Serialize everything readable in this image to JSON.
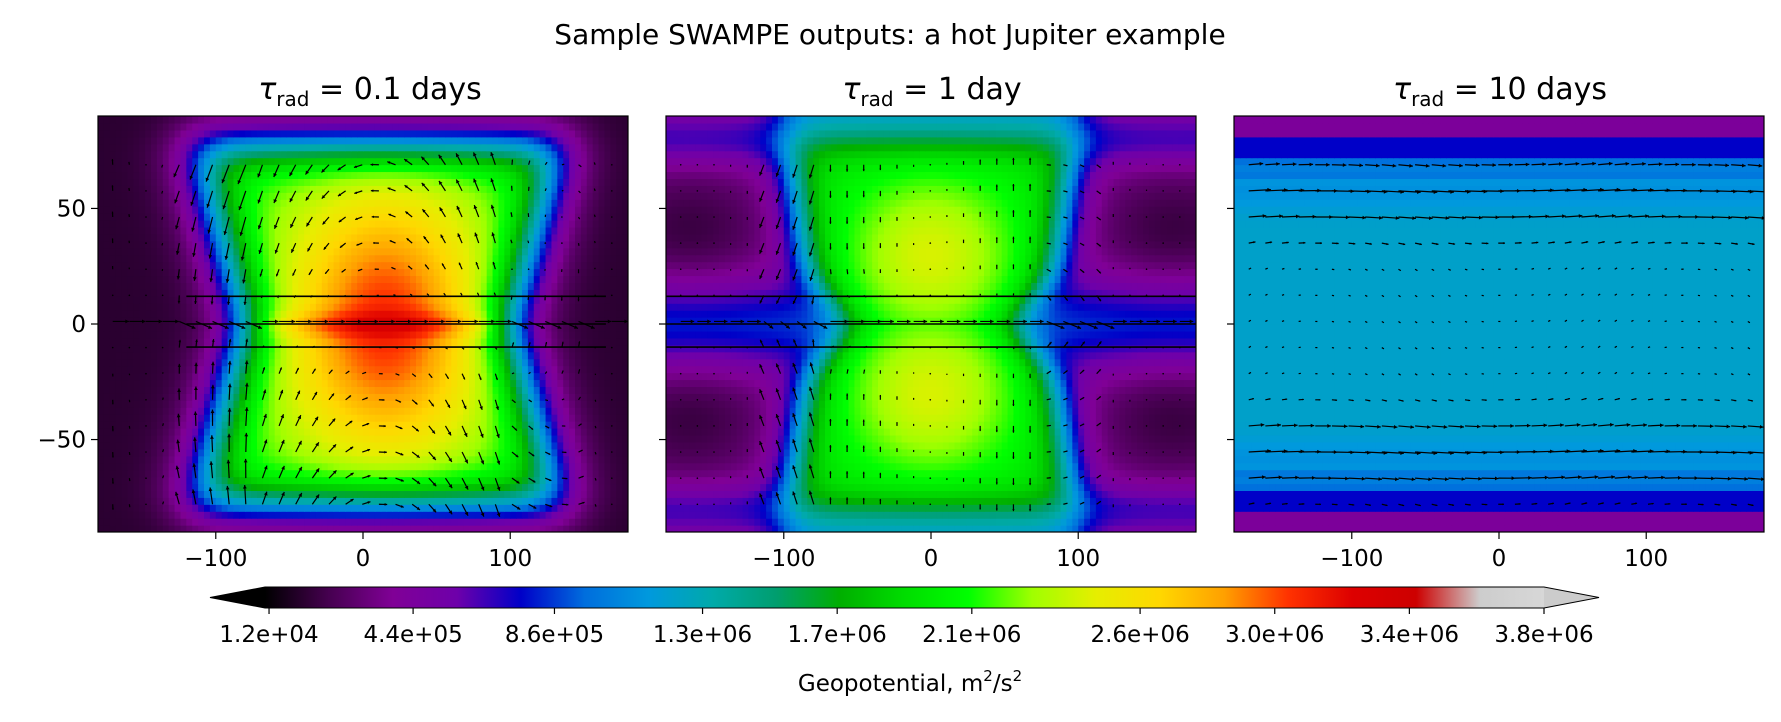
{
  "figure": {
    "title": "Sample SWAMPE outputs: a hot Jupiter example"
  },
  "chart_data": [
    {
      "type": "heatmap",
      "title_symbol": "τ",
      "title_sub": "rad",
      "title_rest": " = 0.1 days",
      "xlim": [
        -180,
        180
      ],
      "ylim": [
        -90,
        90
      ],
      "xticks": [
        -100,
        0,
        100
      ],
      "yticks": [
        50,
        0,
        -50
      ],
      "ytick_labels": [
        "50",
        "0",
        "−50"
      ],
      "xtick_labels": [
        "−100",
        "0",
        "100"
      ],
      "has_quiver": true
    },
    {
      "type": "heatmap",
      "title_symbol": "τ",
      "title_sub": "rad",
      "title_rest": " = 1 day",
      "xlim": [
        -180,
        180
      ],
      "ylim": [
        -90,
        90
      ],
      "xticks": [
        -100,
        0,
        100
      ],
      "yticks": [
        50,
        0,
        -50
      ],
      "xtick_labels": [
        "−100",
        "0",
        "100"
      ],
      "has_quiver": true
    },
    {
      "type": "heatmap",
      "title_symbol": "τ",
      "title_sub": "rad",
      "title_rest": " = 10 days",
      "xlim": [
        -180,
        180
      ],
      "ylim": [
        -90,
        90
      ],
      "xticks": [
        -100,
        0,
        100
      ],
      "yticks": [
        50,
        0,
        -50
      ],
      "xtick_labels": [
        "−100",
        "0",
        "100"
      ],
      "has_quiver": true
    }
  ],
  "colorbar": {
    "label": "Geopotential, m",
    "label_sup": "2",
    "label_mid": "/s",
    "label_sup2": "2",
    "extend": "both",
    "colormap": "nipy_spectral",
    "range": [
      0,
      3800000
    ],
    "ticks": [
      12000,
      440000,
      860000,
      1300000,
      1700000,
      2100000,
      2600000,
      3000000,
      3400000,
      3800000
    ],
    "tick_labels": [
      "1.2e+04",
      "4.4e+05",
      "8.6e+05",
      "1.3e+06",
      "1.7e+06",
      "2.1e+06",
      "2.6e+06",
      "3.0e+06",
      "3.4e+06",
      "3.8e+06"
    ]
  }
}
